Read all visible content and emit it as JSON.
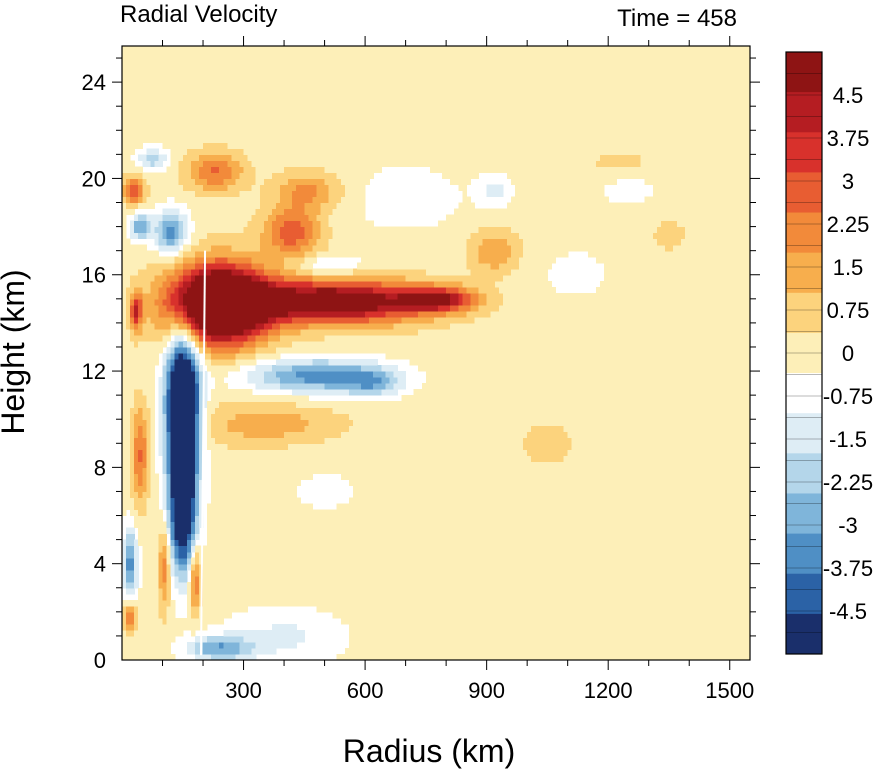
{
  "chart_data": {
    "type": "heatmap",
    "title_left": "Radial Velocity",
    "title_right": "Time = 458",
    "xlabel": "Radius (km)",
    "ylabel": "Height (km)",
    "xlim": [
      0,
      1550
    ],
    "ylim": [
      0,
      25.5
    ],
    "xticks": [
      300,
      600,
      900,
      1200,
      1500
    ],
    "yticks": [
      0,
      4,
      8,
      12,
      16,
      20,
      24
    ],
    "colorbar": {
      "levels_min": -5.25,
      "levels_max": 5.25,
      "labels": [
        "4.5",
        "3.75",
        "3",
        "2.25",
        "1.5",
        "0.75",
        "0",
        "-0.75",
        "-1.5",
        "-2.25",
        "-3",
        "-3.75",
        "-4.5"
      ],
      "label_values": [
        4.5,
        3.75,
        3,
        2.25,
        1.5,
        0.75,
        0,
        -0.75,
        -1.5,
        -2.25,
        -3,
        -3.75,
        -4.5
      ],
      "colors": [
        "#8e1414",
        "#b51d22",
        "#d8312c",
        "#e85d32",
        "#f28a3a",
        "#f7ae4d",
        "#fcd37d",
        "#fdefb8",
        "#ffffff",
        "#deedf5",
        "#b4d6ea",
        "#7fb5da",
        "#4f8fc5",
        "#2b62a6",
        "#1a2f6b"
      ]
    },
    "features": [
      {
        "r": 240,
        "z": 14.8,
        "sr": 120,
        "sz": 1.6,
        "v": 9
      },
      {
        "r": 520,
        "z": 14.9,
        "sr": 230,
        "sz": 0.9,
        "v": 6
      },
      {
        "r": 780,
        "z": 15.0,
        "sr": 90,
        "sz": 0.5,
        "v": 4
      },
      {
        "r": 150,
        "z": 10.5,
        "sr": 40,
        "sz": 3.0,
        "v": -9
      },
      {
        "r": 150,
        "z": 6.0,
        "sr": 35,
        "sz": 2.5,
        "v": -6
      },
      {
        "r": 480,
        "z": 11.8,
        "sr": 170,
        "sz": 0.7,
        "v": -3.5
      },
      {
        "r": 620,
        "z": 11.5,
        "sr": 70,
        "sz": 0.6,
        "v": -2.0
      },
      {
        "r": 120,
        "z": 17.8,
        "sr": 40,
        "sz": 0.9,
        "v": -3.5
      },
      {
        "r": 45,
        "z": 18.0,
        "sr": 25,
        "sz": 0.6,
        "v": -3.0
      },
      {
        "r": 30,
        "z": 19.5,
        "sr": 25,
        "sz": 0.6,
        "v": 3.0
      },
      {
        "r": 75,
        "z": 20.8,
        "sr": 40,
        "sz": 0.5,
        "v": -2.0
      },
      {
        "r": 230,
        "z": 20.3,
        "sr": 70,
        "sz": 0.8,
        "v": 2.5
      },
      {
        "r": 420,
        "z": 17.8,
        "sr": 70,
        "sz": 1.0,
        "v": 3.0
      },
      {
        "r": 460,
        "z": 19.5,
        "sr": 80,
        "sz": 0.8,
        "v": 2.0
      },
      {
        "r": 510,
        "z": 16.4,
        "sr": 80,
        "sz": 0.4,
        "v": -1.5
      },
      {
        "r": 920,
        "z": 17.0,
        "sr": 60,
        "sz": 0.9,
        "v": 1.8
      },
      {
        "r": 920,
        "z": 19.5,
        "sr": 40,
        "sz": 0.7,
        "v": -1.2
      },
      {
        "r": 360,
        "z": 9.8,
        "sr": 180,
        "sz": 0.9,
        "v": 1.5
      },
      {
        "r": 20,
        "z": 4.0,
        "sr": 18,
        "sz": 1.5,
        "v": -3.5
      },
      {
        "r": 20,
        "z": 1.8,
        "sr": 15,
        "sz": 0.6,
        "v": 3.0
      },
      {
        "r": 35,
        "z": 14.5,
        "sr": 15,
        "sz": 0.8,
        "v": 3.5
      },
      {
        "r": 45,
        "z": 8.5,
        "sr": 20,
        "sz": 2.0,
        "v": 2.5
      },
      {
        "r": 105,
        "z": 4.0,
        "sr": 15,
        "sz": 1.8,
        "v": 2.5
      },
      {
        "r": 180,
        "z": 3.5,
        "sr": 15,
        "sz": 1.5,
        "v": 3.0
      },
      {
        "r": 240,
        "z": 0.5,
        "sr": 80,
        "sz": 0.5,
        "v": -3.0
      },
      {
        "r": 400,
        "z": 1.0,
        "sr": 150,
        "sz": 1.2,
        "v": -1.2
      },
      {
        "r": 1050,
        "z": 9.0,
        "sr": 60,
        "sz": 0.8,
        "v": 1.0
      },
      {
        "r": 1230,
        "z": 20.7,
        "sr": 80,
        "sz": 0.4,
        "v": 0.9
      },
      {
        "r": 1350,
        "z": 17.7,
        "sr": 40,
        "sz": 0.6,
        "v": 1.0
      },
      {
        "r": 1120,
        "z": 16.0,
        "sr": 120,
        "sz": 1.5,
        "v": -0.5
      },
      {
        "r": 1250,
        "z": 19.5,
        "sr": 160,
        "sz": 1.5,
        "v": -0.4
      },
      {
        "r": 700,
        "z": 19.2,
        "sr": 180,
        "sz": 1.8,
        "v": -0.6
      },
      {
        "r": 500,
        "z": 7.0,
        "sr": 200,
        "sz": 2.0,
        "v": -0.4
      },
      {
        "r": 700,
        "z": 3.5,
        "sr": 200,
        "sz": 1.5,
        "v": 0.3
      }
    ],
    "grid": false,
    "legend": "colorbar-right"
  }
}
